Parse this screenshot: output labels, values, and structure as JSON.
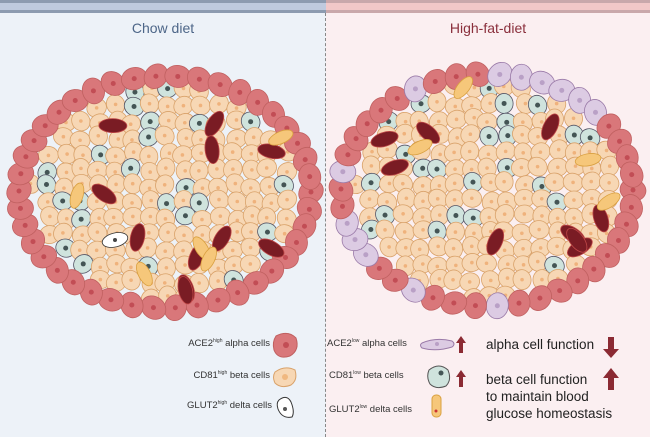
{
  "left": {
    "title": "Chow diet",
    "legend": [
      {
        "marker": "ACE2",
        "sup": "high",
        "label": "alpha cells",
        "icon": "alpha-cell-icon"
      },
      {
        "marker": "CD81",
        "sup": "high",
        "label": "beta cells",
        "icon": "beta-cell-icon"
      },
      {
        "marker": "GLUT2",
        "sup": "high",
        "label": "delta cells",
        "icon": "delta-cell-icon"
      }
    ]
  },
  "right": {
    "title": "High-fat-diet",
    "legend": [
      {
        "marker": "ACE2",
        "sup": "low",
        "label": "alpha cells",
        "icon": "alpha-cell-icon",
        "trend": "up"
      },
      {
        "marker": "CD81",
        "sup": "low",
        "label": "beta cells",
        "icon": "beta-cell-icon",
        "trend": "up"
      },
      {
        "marker": "GLUT2",
        "sup": "low",
        "label": "delta cells",
        "icon": "delta-cell-icon"
      }
    ],
    "effects": [
      {
        "text": "alpha cell function",
        "trend": "down"
      },
      {
        "text": "beta cell function to maintain blood glucose homeostasis",
        "lines": [
          "beta cell function",
          "to maintain blood",
          "glucose homeostasis"
        ],
        "trend": "up"
      }
    ]
  },
  "colors": {
    "alpha": "#d9777a",
    "beta": "#f7d7b4",
    "beta_low": "#cfe3dd",
    "delta": "#ffffff",
    "delta_low": "#f6c77a",
    "dark": "#7a1c24",
    "arrow": "#8b2a33",
    "chow": "#4d6688",
    "hfd": "#8a2f3c"
  }
}
